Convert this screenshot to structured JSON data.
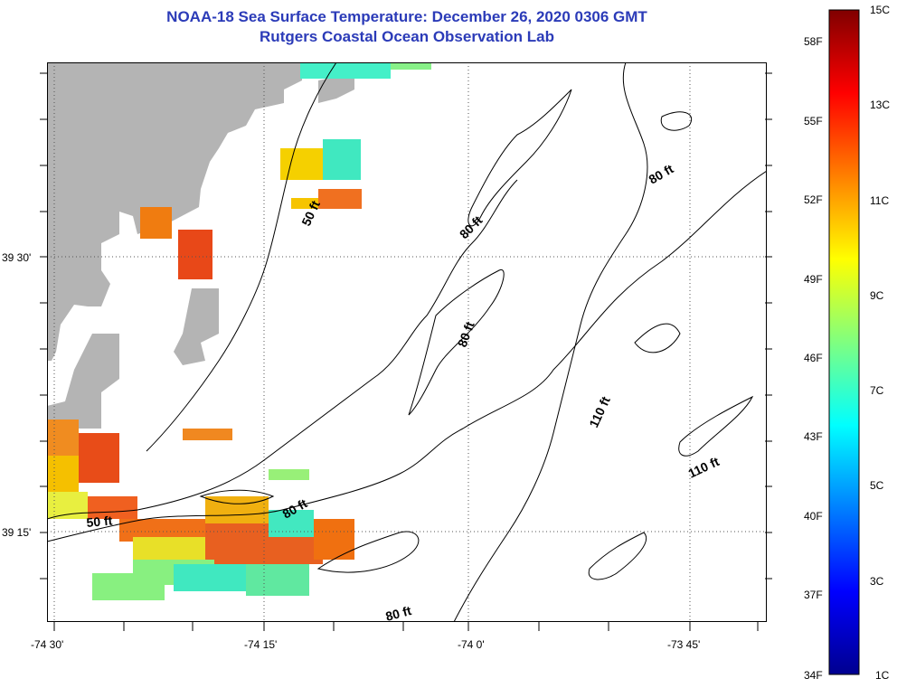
{
  "title": {
    "line1": "NOAA-18 Sea Surface Temperature:  December 26, 2020 0306 GMT",
    "line2": "Rutgers Coastal Ocean Observation Lab"
  },
  "map": {
    "latitude_labels": [
      "39 30'",
      "39 15'"
    ],
    "longitude_labels": [
      "-74 30'",
      "-74 15'",
      "-74 0'",
      "-73 45'"
    ],
    "contour_labels": [
      "50 ft",
      "80 ft",
      "80 ft",
      "80 ft",
      "110 ft",
      "110 ft",
      "50 ft",
      "80 ft",
      "80 ft"
    ],
    "colors": {
      "land": "#b4b4b4",
      "coastline": "#000000",
      "title": "#2b3bb8"
    }
  },
  "colorbar": {
    "celsius": [
      "15C",
      "13C",
      "11C",
      "9C",
      "7C",
      "5C",
      "3C",
      "1C"
    ],
    "fahrenheit": [
      "58F",
      "55F",
      "52F",
      "49F",
      "46F",
      "43F",
      "40F",
      "37F",
      "34F"
    ],
    "range_c": [
      1,
      15
    ],
    "colormap": "jet"
  }
}
